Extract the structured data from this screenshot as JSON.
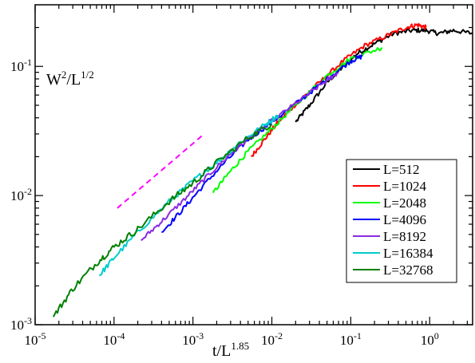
{
  "chart_data": {
    "type": "line",
    "x_scale": "log",
    "y_scale": "log",
    "xlim": [
      1e-05,
      3.5
    ],
    "ylim": [
      0.001,
      0.3
    ],
    "xlabel": {
      "base": "t/L",
      "sup": "1.85"
    },
    "ylabel": {
      "p1": "W",
      "s1": "2",
      "p2": "/L",
      "s2": "1/2"
    },
    "x_ticks": [
      {
        "value": 1e-05,
        "base": "10",
        "exp": "-5"
      },
      {
        "value": 0.0001,
        "base": "10",
        "exp": "-4"
      },
      {
        "value": 0.001,
        "base": "10",
        "exp": "-3"
      },
      {
        "value": 0.01,
        "base": "10",
        "exp": "-2"
      },
      {
        "value": 0.1,
        "base": "10",
        "exp": "-1"
      },
      {
        "value": 1,
        "base": "10",
        "exp": "0"
      }
    ],
    "y_ticks": [
      {
        "value": 0.001,
        "base": "10",
        "exp": "-3"
      },
      {
        "value": 0.01,
        "base": "10",
        "exp": "-2"
      },
      {
        "value": 0.1,
        "base": "10",
        "exp": "-1"
      }
    ],
    "legend_position": "lower-right",
    "series": [
      {
        "name": "L=512",
        "color": "#000000",
        "noise": 0.018,
        "points": [
          [
            0.02,
            0.037
          ],
          [
            0.03,
            0.05
          ],
          [
            0.05,
            0.075
          ],
          [
            0.08,
            0.1
          ],
          [
            0.12,
            0.125
          ],
          [
            0.2,
            0.15
          ],
          [
            0.35,
            0.18
          ],
          [
            0.6,
            0.19
          ],
          [
            0.9,
            0.19
          ],
          [
            1.3,
            0.18
          ],
          [
            2.0,
            0.19
          ],
          [
            3.5,
            0.18
          ]
        ]
      },
      {
        "name": "L=1024",
        "color": "#ff0000",
        "noise": 0.018,
        "points": [
          [
            0.0055,
            0.02
          ],
          [
            0.008,
            0.027
          ],
          [
            0.012,
            0.037
          ],
          [
            0.02,
            0.051
          ],
          [
            0.04,
            0.075
          ],
          [
            0.08,
            0.11
          ],
          [
            0.15,
            0.145
          ],
          [
            0.3,
            0.175
          ],
          [
            0.5,
            0.2
          ],
          [
            0.7,
            0.21
          ],
          [
            0.9,
            0.2
          ]
        ]
      },
      {
        "name": "L=2048",
        "color": "#00ff00",
        "noise": 0.018,
        "points": [
          [
            0.0018,
            0.0105
          ],
          [
            0.003,
            0.0155
          ],
          [
            0.005,
            0.022
          ],
          [
            0.01,
            0.033
          ],
          [
            0.02,
            0.05
          ],
          [
            0.05,
            0.085
          ],
          [
            0.1,
            0.115
          ],
          [
            0.25,
            0.14
          ]
        ]
      },
      {
        "name": "L=4096",
        "color": "#0000ff",
        "noise": 0.018,
        "points": [
          [
            0.0004,
            0.0052
          ],
          [
            0.0007,
            0.0075
          ],
          [
            0.0012,
            0.011
          ],
          [
            0.0025,
            0.018
          ],
          [
            0.005,
            0.027
          ],
          [
            0.01,
            0.037
          ],
          [
            0.025,
            0.057
          ],
          [
            0.05,
            0.08
          ],
          [
            0.1,
            0.11
          ],
          [
            0.14,
            0.12
          ]
        ]
      },
      {
        "name": "L=8192",
        "color": "#8a2be2",
        "noise": 0.018,
        "points": [
          [
            0.00022,
            0.0045
          ],
          [
            0.0004,
            0.0063
          ],
          [
            0.0008,
            0.0095
          ],
          [
            0.0015,
            0.014
          ],
          [
            0.003,
            0.021
          ],
          [
            0.006,
            0.03
          ],
          [
            0.012,
            0.041
          ],
          [
            0.025,
            0.057
          ],
          [
            0.05,
            0.078
          ],
          [
            0.07,
            0.09
          ]
        ]
      },
      {
        "name": "L=16384",
        "color": "#00cccc",
        "noise": 0.02,
        "points": [
          [
            6.5e-05,
            0.0024
          ],
          [
            0.0001,
            0.0033
          ],
          [
            0.0002,
            0.0052
          ],
          [
            0.0005,
            0.009
          ],
          [
            0.001,
            0.013
          ],
          [
            0.002,
            0.018
          ],
          [
            0.004,
            0.026
          ],
          [
            0.008,
            0.035
          ],
          [
            0.012,
            0.042
          ]
        ]
      },
      {
        "name": "L=32768",
        "color": "#008000",
        "noise": 0.025,
        "points": [
          [
            1.7e-05,
            0.00115
          ],
          [
            3e-05,
            0.0019
          ],
          [
            6e-05,
            0.003
          ],
          [
            0.0001,
            0.004
          ],
          [
            0.0002,
            0.0055
          ],
          [
            0.0005,
            0.009
          ],
          [
            0.001,
            0.0125
          ],
          [
            0.002,
            0.018
          ],
          [
            0.005,
            0.028
          ],
          [
            0.01,
            0.036
          ]
        ]
      }
    ],
    "reference_line": {
      "color": "#ff00ff",
      "dashed": true,
      "points": [
        [
          0.00011,
          0.008
        ],
        [
          0.0013,
          0.029
        ]
      ]
    }
  }
}
